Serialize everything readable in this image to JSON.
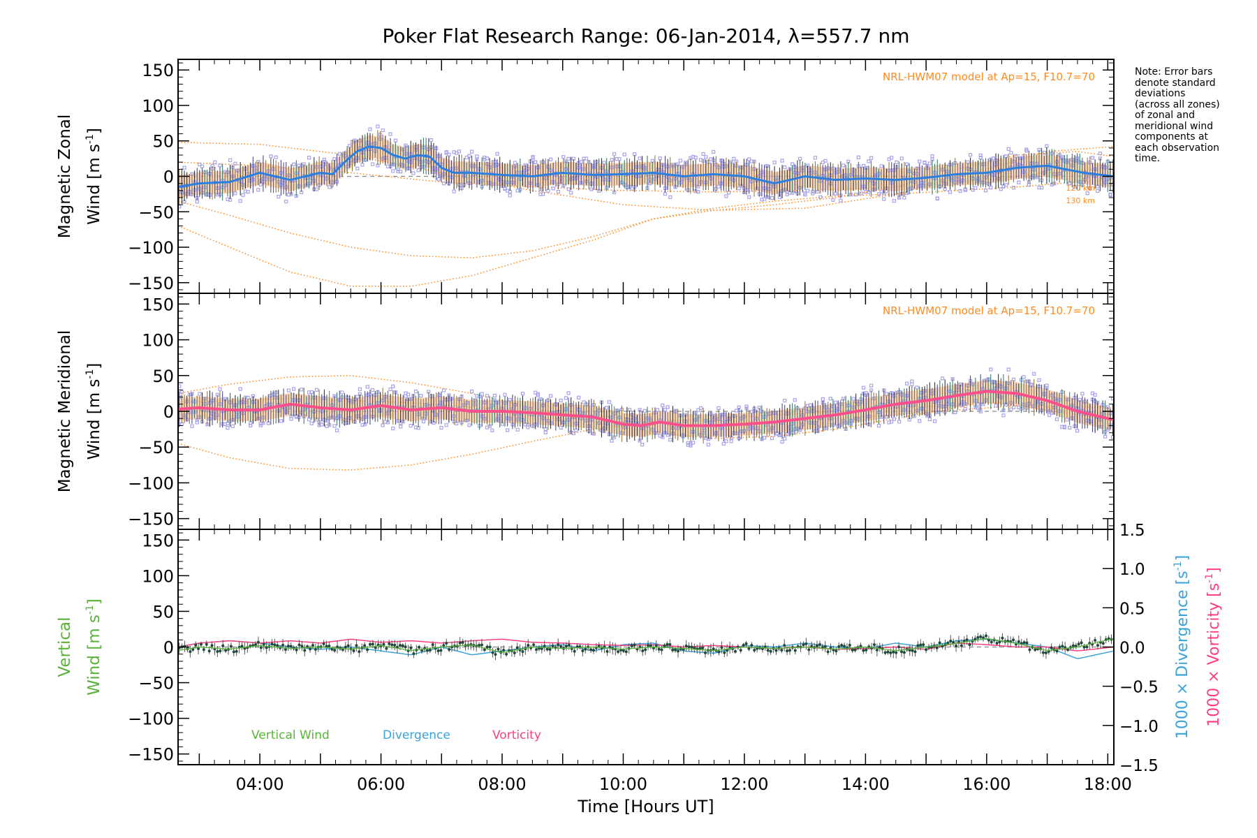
{
  "title": "Poker Flat Research Range: 06-Jan-2014, λ=557.7 nm",
  "note": "Note: Error bars\ndenote standard\ndeviations\n(across all zones)\nof zonal and\nmeridional wind\ncomponents at\neach observation\ntime.",
  "xlabel": "Time [Hours UT]",
  "colors": {
    "zonal": "#2a7fe0",
    "meridional": "#ff4f8a",
    "model": "#ff8a1e",
    "vertical": "#5ab23a",
    "divergence": "#3aa3d8",
    "vorticity": "#ff3d82",
    "scatter": "#a7a3e8",
    "errorbar": "#222222",
    "band": "#f5c6a0"
  },
  "chart_data": [
    {
      "type": "line",
      "panel": "zonal",
      "ylabel_line1": "Magnetic Zonal",
      "ylabel_line2": "Wind [m s",
      "ylabel_sup": "-1",
      "ylabel_end": "]",
      "annotation": "NRL-HWM07 model at Ap=15, F10.7=70",
      "model_labels": [
        "120 km",
        "130 km"
      ],
      "xlim": [
        2.65,
        18.1
      ],
      "ylim": [
        -165,
        165
      ],
      "yticks": [
        150,
        100,
        50,
        0,
        -50,
        -100,
        -150
      ],
      "x_tick_labels": [
        "04:00",
        "06:00",
        "08:00",
        "10:00",
        "12:00",
        "14:00",
        "16:00",
        "18:00"
      ],
      "series": [
        {
          "role": "mean",
          "x": [
            2.65,
            3.0,
            3.5,
            4.0,
            4.5,
            5.0,
            5.2,
            5.4,
            5.6,
            5.8,
            6.0,
            6.2,
            6.4,
            6.6,
            6.8,
            7.0,
            7.2,
            7.5,
            8.0,
            8.5,
            9.0,
            9.5,
            10.0,
            10.5,
            11.0,
            11.5,
            12.0,
            12.5,
            13.0,
            13.5,
            14.0,
            14.5,
            15.0,
            15.5,
            16.0,
            16.5,
            17.0,
            17.3,
            17.6,
            18.1
          ],
          "y": [
            -15,
            -10,
            -8,
            5,
            -5,
            5,
            3,
            20,
            35,
            42,
            40,
            30,
            25,
            30,
            28,
            12,
            5,
            5,
            2,
            0,
            5,
            2,
            3,
            5,
            0,
            3,
            0,
            -10,
            0,
            -5,
            -3,
            -5,
            -2,
            3,
            5,
            12,
            15,
            10,
            5,
            0
          ]
        },
        {
          "role": "model",
          "x": [
            2.65,
            3.5,
            4.5,
            5.5,
            6.5,
            7.5,
            8.5,
            9.5,
            10.5,
            11.5,
            12.5,
            13.5,
            14.5,
            15.5,
            16.5,
            17.5,
            18.1
          ],
          "y": [
            -70,
            -100,
            -135,
            -155,
            -155,
            -140,
            -115,
            -90,
            -60,
            -48,
            -40,
            -30,
            -15,
            10,
            30,
            35,
            28
          ]
        },
        {
          "role": "model",
          "x": [
            2.65,
            3.5,
            4.5,
            5.5,
            6.5,
            7.5,
            8.5,
            9.5,
            10.5,
            11.5,
            12.5,
            13.5,
            14.5,
            15.5,
            16.5,
            17.5,
            18.1
          ],
          "y": [
            -35,
            -55,
            -80,
            -100,
            -112,
            -115,
            -105,
            -85,
            -60,
            -45,
            -35,
            -28,
            -25,
            -20,
            -15,
            -8,
            -5
          ]
        },
        {
          "role": "model",
          "x": [
            2.65,
            4.0,
            5.5,
            7.0,
            8.5,
            10.0,
            11.5,
            13.0,
            14.5,
            16.0,
            17.0,
            18.1
          ],
          "y": [
            48,
            45,
            30,
            5,
            -20,
            -40,
            -48,
            -45,
            -25,
            10,
            35,
            42
          ]
        },
        {
          "role": "model",
          "x": [
            2.65,
            4.0,
            5.5,
            7.0,
            8.5,
            10.0,
            11.5,
            13.0,
            14.5,
            16.0,
            17.0,
            18.1
          ],
          "y": [
            20,
            15,
            5,
            -8,
            -15,
            -20,
            -22,
            -20,
            -15,
            -5,
            5,
            12
          ]
        }
      ]
    },
    {
      "type": "line",
      "panel": "meridional",
      "ylabel_line1": "Magnetic Meridional",
      "ylabel_line2": "Wind [m s",
      "ylabel_sup": "-1",
      "ylabel_end": "]",
      "annotation": "NRL-HWM07 model at Ap=15, F10.7=70",
      "xlim": [
        2.65,
        18.1
      ],
      "ylim": [
        -165,
        165
      ],
      "yticks": [
        150,
        100,
        50,
        0,
        -50,
        -100,
        -150
      ],
      "series": [
        {
          "role": "mean",
          "x": [
            2.65,
            3.0,
            3.5,
            4.0,
            4.5,
            5.0,
            5.5,
            6.0,
            6.5,
            7.0,
            7.5,
            8.0,
            8.5,
            9.0,
            9.5,
            10.0,
            10.3,
            10.6,
            11.0,
            11.5,
            12.0,
            12.5,
            13.0,
            13.5,
            14.0,
            14.5,
            15.0,
            15.5,
            16.0,
            16.5,
            17.0,
            17.5,
            18.1
          ],
          "y": [
            3,
            5,
            2,
            2,
            10,
            5,
            2,
            8,
            2,
            5,
            0,
            0,
            -2,
            -5,
            -8,
            -18,
            -20,
            -15,
            -20,
            -20,
            -18,
            -15,
            -10,
            -5,
            2,
            10,
            15,
            22,
            28,
            25,
            15,
            0,
            -12
          ]
        },
        {
          "role": "model",
          "x": [
            2.65,
            3.5,
            4.5,
            5.5,
            6.5,
            7.5,
            8.5,
            9.5,
            10.5,
            11.5,
            12.5,
            13.5,
            14.5,
            15.5,
            16.0,
            16.5,
            17.5,
            18.1
          ],
          "y": [
            -45,
            -65,
            -80,
            -82,
            -75,
            -60,
            -42,
            -25,
            -15,
            -10,
            -5,
            0,
            5,
            8,
            12,
            10,
            0,
            -5
          ]
        },
        {
          "role": "model",
          "x": [
            2.65,
            3.5,
            4.5,
            5.5,
            6.5,
            7.5,
            8.5,
            9.5,
            10.5,
            11.5,
            12.5,
            13.5,
            14.5,
            15.5,
            16.0,
            16.5,
            17.5,
            18.1
          ],
          "y": [
            25,
            38,
            48,
            50,
            40,
            25,
            5,
            -15,
            -30,
            -38,
            -35,
            -25,
            -10,
            5,
            12,
            8,
            -5,
            -12
          ]
        },
        {
          "role": "model",
          "x": [
            2.65,
            4.5,
            6.5,
            8.5,
            10.5,
            12.5,
            14.5,
            16.5,
            18.1
          ],
          "y": [
            12,
            18,
            12,
            0,
            -12,
            -15,
            -5,
            8,
            5
          ]
        }
      ]
    },
    {
      "type": "line",
      "panel": "vertical",
      "ylabel_line1": "Vertical",
      "ylabel_line2": "Wind [m s",
      "ylabel_sup": "-1",
      "ylabel_end": "]",
      "right_axis": {
        "label1": "1000 × Divergence [s",
        "label2": "1000 × Vorticity [s",
        "sup": "-1",
        "end": "]",
        "ylim": [
          -1.5,
          1.5
        ],
        "yticks": [
          1.5,
          1.0,
          0.5,
          0.0,
          -0.5,
          -1.0,
          -1.5
        ],
        "tick_labels": [
          "1.5",
          "1.0",
          "0.5",
          "0.0",
          "−0.5",
          "−1.0",
          "−1.5"
        ]
      },
      "legend": [
        "Vertical Wind",
        "Divergence",
        "Vorticity"
      ],
      "xlim": [
        2.65,
        18.1
      ],
      "ylim": [
        -165,
        165
      ],
      "yticks": [
        150,
        100,
        50,
        0,
        -50,
        -100,
        -150
      ],
      "series": [
        {
          "name": "Vertical Wind",
          "x": [
            2.65,
            3.0,
            3.5,
            4.0,
            4.5,
            5.0,
            5.5,
            6.0,
            6.5,
            7.0,
            7.5,
            8.0,
            8.5,
            9.0,
            9.5,
            10.0,
            10.5,
            11.0,
            11.5,
            12.0,
            12.5,
            13.0,
            13.5,
            14.0,
            14.5,
            15.0,
            15.5,
            16.0,
            16.5,
            17.0,
            17.5,
            18.1
          ],
          "y": [
            -5,
            0,
            -3,
            2,
            -2,
            0,
            -3,
            2,
            -5,
            0,
            3,
            -8,
            0,
            -2,
            0,
            -3,
            0,
            -2,
            -5,
            0,
            -2,
            0,
            -3,
            0,
            -5,
            0,
            5,
            12,
            5,
            -5,
            0,
            12
          ]
        },
        {
          "name": "Divergence",
          "x": [
            2.65,
            3.0,
            3.5,
            4.0,
            4.5,
            5.0,
            5.5,
            6.0,
            6.5,
            7.0,
            7.5,
            8.0,
            8.5,
            9.0,
            9.5,
            10.0,
            10.5,
            11.0,
            11.5,
            12.0,
            12.5,
            13.0,
            13.5,
            14.0,
            14.5,
            15.0,
            15.5,
            16.0,
            16.5,
            17.0,
            17.5,
            18.1
          ],
          "y": [
            0.0,
            0.05,
            0.08,
            0.05,
            0.0,
            -0.03,
            0.0,
            -0.05,
            -0.1,
            0.0,
            -0.1,
            -0.05,
            0.0,
            0.03,
            -0.05,
            0.03,
            0.05,
            -0.05,
            -0.08,
            0.02,
            0.0,
            0.05,
            0.0,
            -0.02,
            0.05,
            0.0,
            0.08,
            0.1,
            0.05,
            0.0,
            -0.15,
            -0.05
          ]
        },
        {
          "name": "Vorticity",
          "x": [
            2.65,
            3.0,
            3.5,
            4.0,
            4.5,
            5.0,
            5.5,
            6.0,
            6.5,
            7.0,
            7.5,
            8.0,
            8.5,
            9.0,
            9.5,
            10.0,
            10.5,
            11.0,
            11.5,
            12.0,
            12.5,
            13.0,
            13.5,
            14.0,
            14.5,
            15.0,
            15.5,
            16.0,
            16.5,
            17.0,
            17.5,
            18.1
          ],
          "y": [
            0.0,
            0.05,
            0.08,
            0.05,
            0.08,
            0.05,
            0.1,
            0.06,
            0.08,
            0.05,
            0.08,
            0.1,
            0.06,
            0.05,
            0.03,
            0.02,
            0.03,
            0.0,
            0.02,
            0.0,
            -0.02,
            0.0,
            -0.03,
            -0.02,
            0.0,
            -0.03,
            0.05,
            0.03,
            0.0,
            0.0,
            -0.05,
            0.0
          ]
        }
      ]
    }
  ]
}
